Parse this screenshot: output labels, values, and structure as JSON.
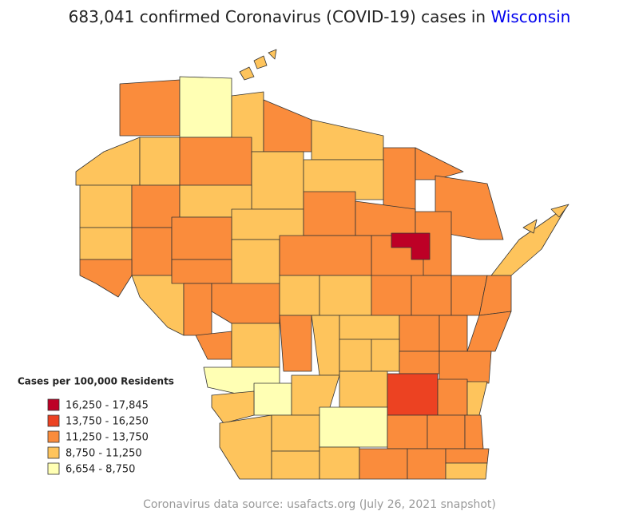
{
  "title": {
    "text": "683,041 confirmed Coronavirus (COVID-19) cases in",
    "place": "Wisconsin",
    "place_color": "#0000ee"
  },
  "legend": {
    "title": "Cases per 100,000 Residents",
    "items": [
      {
        "label": "16,250 - 17,845",
        "color": "#bd0026"
      },
      {
        "label": "13,750 - 16,250",
        "color": "#ec4222"
      },
      {
        "label": "11,250 - 13,750",
        "color": "#fa8c3c"
      },
      {
        "label": "8,750 - 11,250",
        "color": "#fec45c"
      },
      {
        "label": "6,654 - 8,750",
        "color": "#ffffb4"
      }
    ]
  },
  "footnote": "Coronavirus data source: usafacts.org (July 26, 2021 snapshot)"
}
